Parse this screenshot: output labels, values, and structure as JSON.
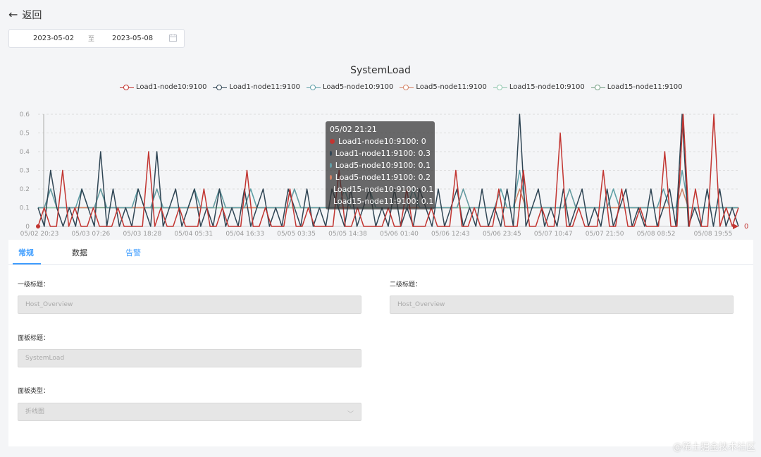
{
  "header": {
    "back_label": "返回"
  },
  "date_range": {
    "start": "2023-05-02",
    "separator": "至",
    "end": "2023-05-08"
  },
  "chart_data": {
    "type": "line",
    "title": "SystemLoad",
    "legend_position": "top-center",
    "grid": true,
    "ylim": [
      0,
      0.6
    ],
    "y_ticks": [
      "0",
      "0.1",
      "0.2",
      "0.3",
      "0.4",
      "0.5",
      "0.6"
    ],
    "x_ticks": [
      "05/02 20:23",
      "05/03 07:26",
      "05/03 18:28",
      "05/04 05:31",
      "05/04 16:33",
      "05/05 03:35",
      "05/05 14:38",
      "05/06 01:40",
      "05/06 12:43",
      "05/06 23:45",
      "05/07 10:47",
      "05/07 21:50",
      "05/08 08:52",
      "05/08 19:55"
    ],
    "series": [
      {
        "name": "Load1-node10:9100",
        "color": "#c23531",
        "values": [
          0,
          0.1,
          0,
          0,
          0.3,
          0,
          0.1,
          0,
          0,
          0.1,
          0,
          0,
          0,
          0.1,
          0,
          0,
          0,
          0,
          0.4,
          0,
          0.1,
          0,
          0,
          0.1,
          0,
          0,
          0,
          0.2,
          0,
          0,
          0.1,
          0,
          0,
          0,
          0.3,
          0,
          0,
          0.1,
          0,
          0,
          0,
          0.2,
          0,
          0,
          0.1,
          0,
          0,
          0,
          0,
          0.3,
          0,
          0,
          0.1,
          0,
          0,
          0,
          0,
          0.1,
          0,
          0,
          0.2,
          0,
          0,
          0,
          0.1,
          0,
          0,
          0,
          0.3,
          0,
          0,
          0.1,
          0,
          0,
          0,
          0.2,
          0,
          0,
          0,
          0.3,
          0,
          0,
          0.1,
          0,
          0,
          0.5,
          0,
          0,
          0.1,
          0,
          0,
          0,
          0.3,
          0,
          0,
          0.2,
          0,
          0,
          0.1,
          0,
          0,
          0,
          0.4,
          0,
          0,
          0.6,
          0,
          0.2,
          0,
          0,
          0.6,
          0,
          0.1,
          0,
          0.1
        ]
      },
      {
        "name": "Load1-node11:9100",
        "color": "#2f4554",
        "values": [
          0.1,
          0,
          0.3,
          0.1,
          0,
          0.1,
          0,
          0.2,
          0.1,
          0,
          0.4,
          0,
          0.2,
          0,
          0.1,
          0,
          0.2,
          0.1,
          0,
          0.4,
          0,
          0.1,
          0.2,
          0,
          0.1,
          0.2,
          0,
          0.1,
          0,
          0.2,
          0,
          0.1,
          0,
          0.2,
          0,
          0.1,
          0.2,
          0,
          0.1,
          0,
          0.2,
          0.1,
          0,
          0.2,
          0,
          0.1,
          0,
          0.2,
          0.1,
          0,
          0.2,
          0,
          0.1,
          0.2,
          0,
          0.1,
          0,
          0.2,
          0,
          0.1,
          0,
          0.2,
          0.1,
          0,
          0.2,
          0,
          0.1,
          0.2,
          0,
          0.1,
          0,
          0.2,
          0,
          0.1,
          0,
          0.2,
          0,
          0.6,
          0,
          0.1,
          0.2,
          0,
          0.1,
          0,
          0.2,
          0,
          0.1,
          0.2,
          0,
          0.1,
          0,
          0.2,
          0,
          0.1,
          0.2,
          0,
          0.1,
          0,
          0.2,
          0,
          0.1,
          0.2,
          0,
          0.6,
          0,
          0.1,
          0,
          0.2,
          0,
          0.2,
          0,
          0.1,
          0
        ]
      },
      {
        "name": "Load5-node10:9100",
        "color": "#61a0a8",
        "values": [
          0.1,
          0.1,
          0.2,
          0.1,
          0.1,
          0.1,
          0.1,
          0.2,
          0.1,
          0.1,
          0.2,
          0.1,
          0.1,
          0.1,
          0.1,
          0.1,
          0.2,
          0.1,
          0.1,
          0.2,
          0.1,
          0.1,
          0.1,
          0.1,
          0.1,
          0.2,
          0.1,
          0.1,
          0.1,
          0.2,
          0.1,
          0.1,
          0.1,
          0.1,
          0.2,
          0.1,
          0.1,
          0.1,
          0.1,
          0.1,
          0.1,
          0.2,
          0.1,
          0.1,
          0.1,
          0.1,
          0.1,
          0.1,
          0.1,
          0.2,
          0.1,
          0.1,
          0.1,
          0.2,
          0.1,
          0.1,
          0.1,
          0.1,
          0.1,
          0.1,
          0.2,
          0.1,
          0.1,
          0.1,
          0.1,
          0.1,
          0.1,
          0.1,
          0.2,
          0.1,
          0.1,
          0.1,
          0.1,
          0.1,
          0.2,
          0.1,
          0.1,
          0.3,
          0.1,
          0.1,
          0.1,
          0.1,
          0.1,
          0.1,
          0.1,
          0.2,
          0.1,
          0.1,
          0.1,
          0.1,
          0.1,
          0.1,
          0.2,
          0.1,
          0.1,
          0.1,
          0.1,
          0.1,
          0.1,
          0.1,
          0.2,
          0.1,
          0.1,
          0.3,
          0.1,
          0.1,
          0.1,
          0.1,
          0.1,
          0.1,
          0.1,
          0.1,
          0.1
        ]
      },
      {
        "name": "Load5-node11:9100",
        "color": "#d48265",
        "values": [
          0.1,
          0.1,
          0.2,
          0.1,
          0.1,
          0.1,
          0.1,
          0.1,
          0.1,
          0.1,
          0.2,
          0.1,
          0.1,
          0.1,
          0.1,
          0.1,
          0.1,
          0.1,
          0.1,
          0.2,
          0.1,
          0.1,
          0.1,
          0.1,
          0.1,
          0.1,
          0.1,
          0.1,
          0.1,
          0.2,
          0.1,
          0.1,
          0.1,
          0.1,
          0.1,
          0.1,
          0.1,
          0.1,
          0.1,
          0.1,
          0.1,
          0.2,
          0.1,
          0.1,
          0.1,
          0.1,
          0.1,
          0.1,
          0.1,
          0.1,
          0.1,
          0.1,
          0.1,
          0.2,
          0.1,
          0.1,
          0.1,
          0.1,
          0.1,
          0.1,
          0.1,
          0.1,
          0.1,
          0.1,
          0.1,
          0.1,
          0.1,
          0.1,
          0.2,
          0.1,
          0.1,
          0.1,
          0.1,
          0.1,
          0.1,
          0.1,
          0.1,
          0.2,
          0.1,
          0.1,
          0.1,
          0.1,
          0.1,
          0.1,
          0.1,
          0.2,
          0.1,
          0.1,
          0.1,
          0.1,
          0.1,
          0.1,
          0.1,
          0.1,
          0.1,
          0.1,
          0.1,
          0.1,
          0.1,
          0.1,
          0.1,
          0.1,
          0.1,
          0.2,
          0.1,
          0.1,
          0.1,
          0.1,
          0.1,
          0.1,
          0.1,
          0.1,
          0.1
        ]
      },
      {
        "name": "Load15-node10:9100",
        "color": "#91c7ae",
        "values": [
          0.1,
          0.1,
          0.1,
          0.1,
          0.1,
          0.1,
          0.1,
          0.1,
          0.1,
          0.1,
          0.2,
          0.1,
          0.1,
          0.1,
          0.1,
          0.1,
          0.2,
          0.1,
          0.1,
          0.1,
          0.1,
          0.1,
          0.1,
          0.1,
          0.1,
          0.2,
          0.1,
          0.1,
          0.1,
          0.1,
          0.1,
          0.1,
          0.1,
          0.1,
          0.2,
          0.1,
          0.1,
          0.1,
          0.1,
          0.1,
          0.1,
          0.1,
          0.1,
          0.1,
          0.1,
          0.1,
          0.1,
          0.1,
          0.1,
          0.2,
          0.1,
          0.1,
          0.1,
          0.1,
          0.1,
          0.1,
          0.1,
          0.1,
          0.1,
          0.1,
          0.2,
          0.1,
          0.1,
          0.1,
          0.1,
          0.1,
          0.1,
          0.1,
          0.1,
          0.1,
          0.1,
          0.1,
          0.1,
          0.1,
          0.2,
          0.1,
          0.1,
          0.2,
          0.1,
          0.1,
          0.1,
          0.1,
          0.1,
          0.1,
          0.1,
          0.1,
          0.1,
          0.1,
          0.1,
          0.1,
          0.1,
          0.1,
          0.2,
          0.1,
          0.1,
          0.1,
          0.1,
          0.1,
          0.1,
          0.1,
          0.1,
          0.1,
          0.1,
          0.2,
          0.1,
          0.1,
          0.1,
          0.1,
          0.1,
          0.1,
          0.1,
          0.1,
          0.1
        ]
      },
      {
        "name": "Load15-node11:9100",
        "color": "#749f83",
        "values": [
          0.1,
          0.1,
          0.1,
          0.1,
          0.1,
          0.1,
          0.1,
          0.1,
          0.1,
          0.1,
          0.1,
          0.1,
          0.1,
          0.1,
          0.1,
          0.1,
          0.1,
          0.1,
          0.1,
          0.1,
          0.1,
          0.1,
          0.1,
          0.1,
          0.1,
          0.1,
          0.1,
          0.1,
          0.1,
          0.1,
          0.1,
          0.1,
          0.1,
          0.1,
          0.1,
          0.1,
          0.1,
          0.1,
          0.1,
          0.1,
          0.1,
          0.1,
          0.1,
          0.1,
          0.1,
          0.1,
          0.1,
          0.1,
          0.1,
          0.1,
          0.1,
          0.1,
          0.1,
          0.1,
          0.1,
          0.1,
          0.1,
          0.1,
          0.1,
          0.1,
          0.1,
          0.1,
          0.1,
          0.1,
          0.1,
          0.1,
          0.1,
          0.1,
          0.1,
          0.1,
          0.1,
          0.1,
          0.1,
          0.1,
          0.1,
          0.1,
          0.1,
          0.1,
          0.1,
          0.1,
          0.1,
          0.1,
          0.1,
          0.1,
          0.1,
          0.1,
          0.1,
          0.1,
          0.1,
          0.1,
          0.1,
          0.1,
          0.1,
          0.1,
          0.1,
          0.1,
          0.1,
          0.1,
          0.1,
          0.1,
          0.1,
          0.1,
          0.1,
          0.1,
          0.1,
          0.1,
          0.1,
          0.1,
          0.1,
          0.1,
          0.1,
          0.1,
          0.1
        ]
      }
    ],
    "tooltip": {
      "title": "05/02 21:21",
      "rows": [
        {
          "label": "Load1-node10:9100: 0",
          "color": "#c23531"
        },
        {
          "label": "Load1-node11:9100: 0.3",
          "color": "#2f4554"
        },
        {
          "label": "Load5-node10:9100: 0.1",
          "color": "#61a0a8"
        },
        {
          "label": "Load5-node11:9100: 0.2",
          "color": "#d48265"
        },
        {
          "label": "Load15-node10:9100: 0.1",
          "color": "#91c7ae"
        },
        {
          "label": "Load15-node11:9100: 0.1",
          "color": "#749f83"
        }
      ]
    },
    "end_marker_label": "0"
  },
  "tabs": [
    {
      "label": "常规",
      "active": true
    },
    {
      "label": "数据",
      "active": false
    },
    {
      "label": "告警",
      "active": false
    }
  ],
  "form": {
    "level1_title_label": "一级标题：",
    "level1_title_value": "Host_Overview",
    "level2_title_label": "二级标题：",
    "level2_title_value": "Host_Overview",
    "panel_title_label": "面板标题：",
    "panel_title_value": "SystemLoad",
    "panel_type_label": "面板类型：",
    "panel_type_value": "折线图"
  },
  "icons": {
    "back": "arrow-left-icon",
    "calendar": "calendar-icon",
    "select": "chevron-down-icon"
  },
  "watermark": "@稀土掘金技术社区"
}
